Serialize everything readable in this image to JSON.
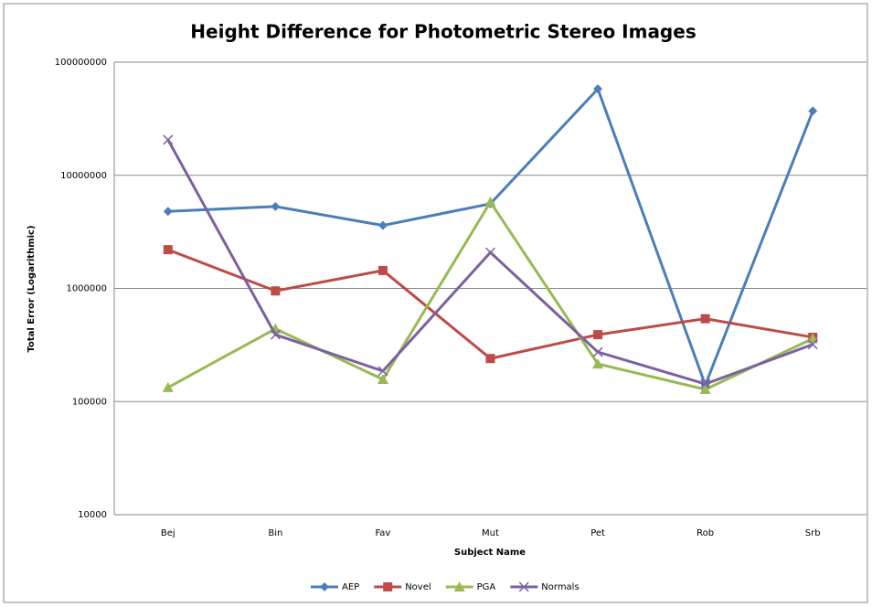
{
  "chart_data": {
    "type": "line",
    "title": "Height Difference for Photometric Stereo Images",
    "x_label": "Subject Name",
    "y_label": "Total Error (Logarithmic)",
    "categories": [
      "Bej",
      "Bin",
      "Fav",
      "Mut",
      "Pet",
      "Rob",
      "Srb"
    ],
    "series": [
      {
        "name": "AEP",
        "color": "#4a7ebb",
        "marker": "diamond",
        "values": [
          4800000,
          5300000,
          3600000,
          5600000,
          58000000,
          140000,
          37000000
        ]
      },
      {
        "name": "Novel",
        "color": "#be4b48",
        "marker": "square",
        "values": [
          2200000,
          950000,
          1440000,
          240000,
          390000,
          540000,
          370000
        ]
      },
      {
        "name": "PGA",
        "color": "#98b954",
        "marker": "triangle",
        "values": [
          133000,
          440000,
          157000,
          5800000,
          215000,
          128000,
          360000
        ]
      },
      {
        "name": "Normals",
        "color": "#7d60a0",
        "marker": "x",
        "values": [
          20600000,
          390000,
          186000,
          2080000,
          274000,
          143000,
          320000
        ]
      }
    ],
    "ylim": [
      10000,
      100000000
    ],
    "yticks": [
      10000,
      100000,
      1000000,
      10000000,
      100000000
    ],
    "log_y": true,
    "grid": true,
    "legend": "bottom"
  }
}
